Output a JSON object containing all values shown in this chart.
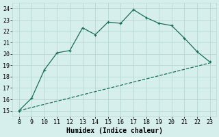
{
  "xlabel": "Humidex (Indice chaleur)",
  "bg_color": "#d6efec",
  "grid_color": "#b8d8d4",
  "line_color": "#1a6b5a",
  "xlim": [
    7.5,
    23.5
  ],
  "ylim": [
    14.5,
    24.5
  ],
  "xticks": [
    8,
    9,
    10,
    11,
    12,
    13,
    14,
    15,
    16,
    17,
    18,
    19,
    20,
    21,
    22,
    23
  ],
  "yticks": [
    15,
    16,
    17,
    18,
    19,
    20,
    21,
    22,
    23,
    24
  ],
  "series1_x": [
    8,
    9,
    10,
    11,
    12,
    13,
    14,
    15,
    16,
    17,
    18,
    19,
    20,
    21,
    22,
    23
  ],
  "series1_y": [
    15.0,
    16.1,
    18.6,
    20.1,
    20.3,
    22.3,
    21.7,
    22.8,
    22.7,
    23.9,
    23.2,
    22.7,
    22.5,
    21.4,
    20.2,
    19.3
  ],
  "series2_x": [
    8,
    23
  ],
  "series2_y": [
    15.0,
    19.2
  ],
  "marker_size": 3.5,
  "line_width": 0.9,
  "tick_fontsize": 6,
  "label_fontsize": 7
}
